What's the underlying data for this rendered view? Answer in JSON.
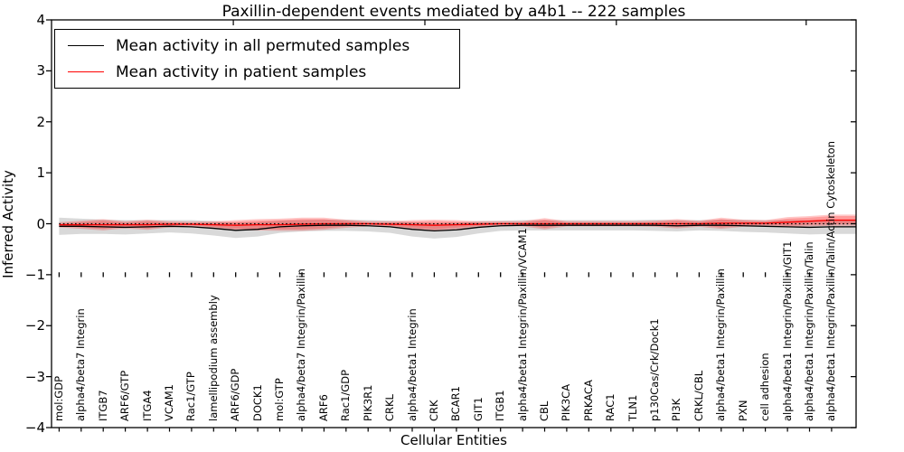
{
  "chart_data": {
    "type": "line",
    "title": "Paxillin-dependent events mediated by a4b1 -- 222 samples",
    "xlabel": "Cellular Entities",
    "ylabel": "Inferred Activity",
    "ylim": [
      -4,
      4
    ],
    "grid": false,
    "legend_position": "upper left",
    "zero_reference_line": 0,
    "category_marker_row_value": -1,
    "ytick_values": [
      4,
      3,
      2,
      1,
      0,
      -1,
      -2,
      -3,
      -4
    ],
    "ytick_labels": [
      "4",
      "3",
      "2",
      "1",
      "0",
      "−1",
      "−2",
      "−3",
      "−4"
    ],
    "categories": [
      "mol:GDP",
      "alpha4/beta7 Integrin",
      "ITGB7",
      "ARF6/GTP",
      "ITGA4",
      "VCAM1",
      "Rac1/GTP",
      "lamellipodium assembly",
      "ARF6/GDP",
      "DOCK1",
      "mol:GTP",
      "alpha4/beta7 Integrin/Paxillin",
      "ARF6",
      "Rac1/GDP",
      "PIK3R1",
      "CRKL",
      "alpha4/beta1 Integrin",
      "CRK",
      "BCAR1",
      "GIT1",
      "ITGB1",
      "alpha4/beta1 Integrin/Paxillin/VCAM1",
      "CBL",
      "PIK3CA",
      "PRKACA",
      "RAC1",
      "TLN1",
      "p130Cas/Crk/Dock1",
      "PI3K",
      "CRKL/CBL",
      "alpha4/beta1 Integrin/Paxillin",
      "PXN",
      "cell adhesion",
      "alpha4/beta1 Integrin/Paxillin/GIT1",
      "alpha4/beta1 Integrin/Paxillin/Talin",
      "alpha4/beta1 Integrin/Paxillin/Talin/Actin Cytoskeleton"
    ],
    "series": [
      {
        "name": "Mean activity in all permuted samples",
        "color": "#000000",
        "band_color": "rgba(0,0,0,0.15)",
        "values": [
          -0.05,
          -0.05,
          -0.06,
          -0.07,
          -0.06,
          -0.05,
          -0.06,
          -0.09,
          -0.13,
          -0.11,
          -0.06,
          -0.04,
          -0.03,
          -0.03,
          -0.04,
          -0.06,
          -0.11,
          -0.14,
          -0.12,
          -0.07,
          -0.04,
          -0.03,
          -0.03,
          -0.03,
          -0.03,
          -0.03,
          -0.03,
          -0.03,
          -0.04,
          -0.03,
          -0.03,
          -0.04,
          -0.05,
          -0.06,
          -0.07,
          -0.06
        ],
        "band_halfwidth": [
          0.17,
          0.15,
          0.14,
          0.14,
          0.13,
          0.12,
          0.13,
          0.14,
          0.15,
          0.14,
          0.12,
          0.11,
          0.11,
          0.11,
          0.11,
          0.12,
          0.14,
          0.15,
          0.14,
          0.12,
          0.1,
          0.1,
          0.1,
          0.1,
          0.1,
          0.1,
          0.1,
          0.11,
          0.11,
          0.1,
          0.11,
          0.12,
          0.12,
          0.13,
          0.14,
          0.14
        ]
      },
      {
        "name": "Mean activity in patient samples",
        "color": "#ff0000",
        "band_color": "rgba(255,0,0,0.22)",
        "values": [
          -0.02,
          -0.02,
          -0.02,
          -0.02,
          -0.02,
          -0.01,
          -0.01,
          -0.02,
          -0.03,
          -0.02,
          -0.02,
          -0.01,
          0.0,
          0.0,
          0.0,
          -0.01,
          -0.02,
          -0.03,
          -0.02,
          -0.01,
          0.0,
          0.0,
          0.0,
          0.0,
          0.0,
          0.0,
          0.0,
          0.0,
          0.0,
          0.0,
          0.01,
          0.01,
          0.01,
          0.03,
          0.05,
          0.07
        ],
        "band_halfwidth_outer": [
          0.05,
          0.08,
          0.11,
          0.07,
          0.1,
          0.06,
          0.05,
          0.07,
          0.1,
          0.11,
          0.12,
          0.13,
          0.12,
          0.08,
          0.05,
          0.06,
          0.09,
          0.11,
          0.09,
          0.06,
          0.05,
          0.05,
          0.11,
          0.05,
          0.05,
          0.05,
          0.05,
          0.06,
          0.09,
          0.06,
          0.11,
          0.07,
          0.06,
          0.1,
          0.1,
          0.11
        ],
        "band_halfwidth_inner": [
          0.02,
          0.05,
          0.08,
          0.04,
          0.07,
          0.03,
          0.02,
          0.04,
          0.07,
          0.08,
          0.09,
          0.1,
          0.09,
          0.05,
          0.02,
          0.03,
          0.06,
          0.08,
          0.06,
          0.03,
          0.02,
          0.02,
          0.08,
          0.02,
          0.02,
          0.02,
          0.02,
          0.03,
          0.06,
          0.03,
          0.08,
          0.04,
          0.03,
          0.07,
          0.07,
          0.08
        ]
      }
    ]
  },
  "legend": {
    "items": [
      {
        "label": "Mean activity in all permuted samples",
        "color": "#000000"
      },
      {
        "label": "Mean activity in patient samples",
        "color": "#ff0000"
      }
    ]
  }
}
